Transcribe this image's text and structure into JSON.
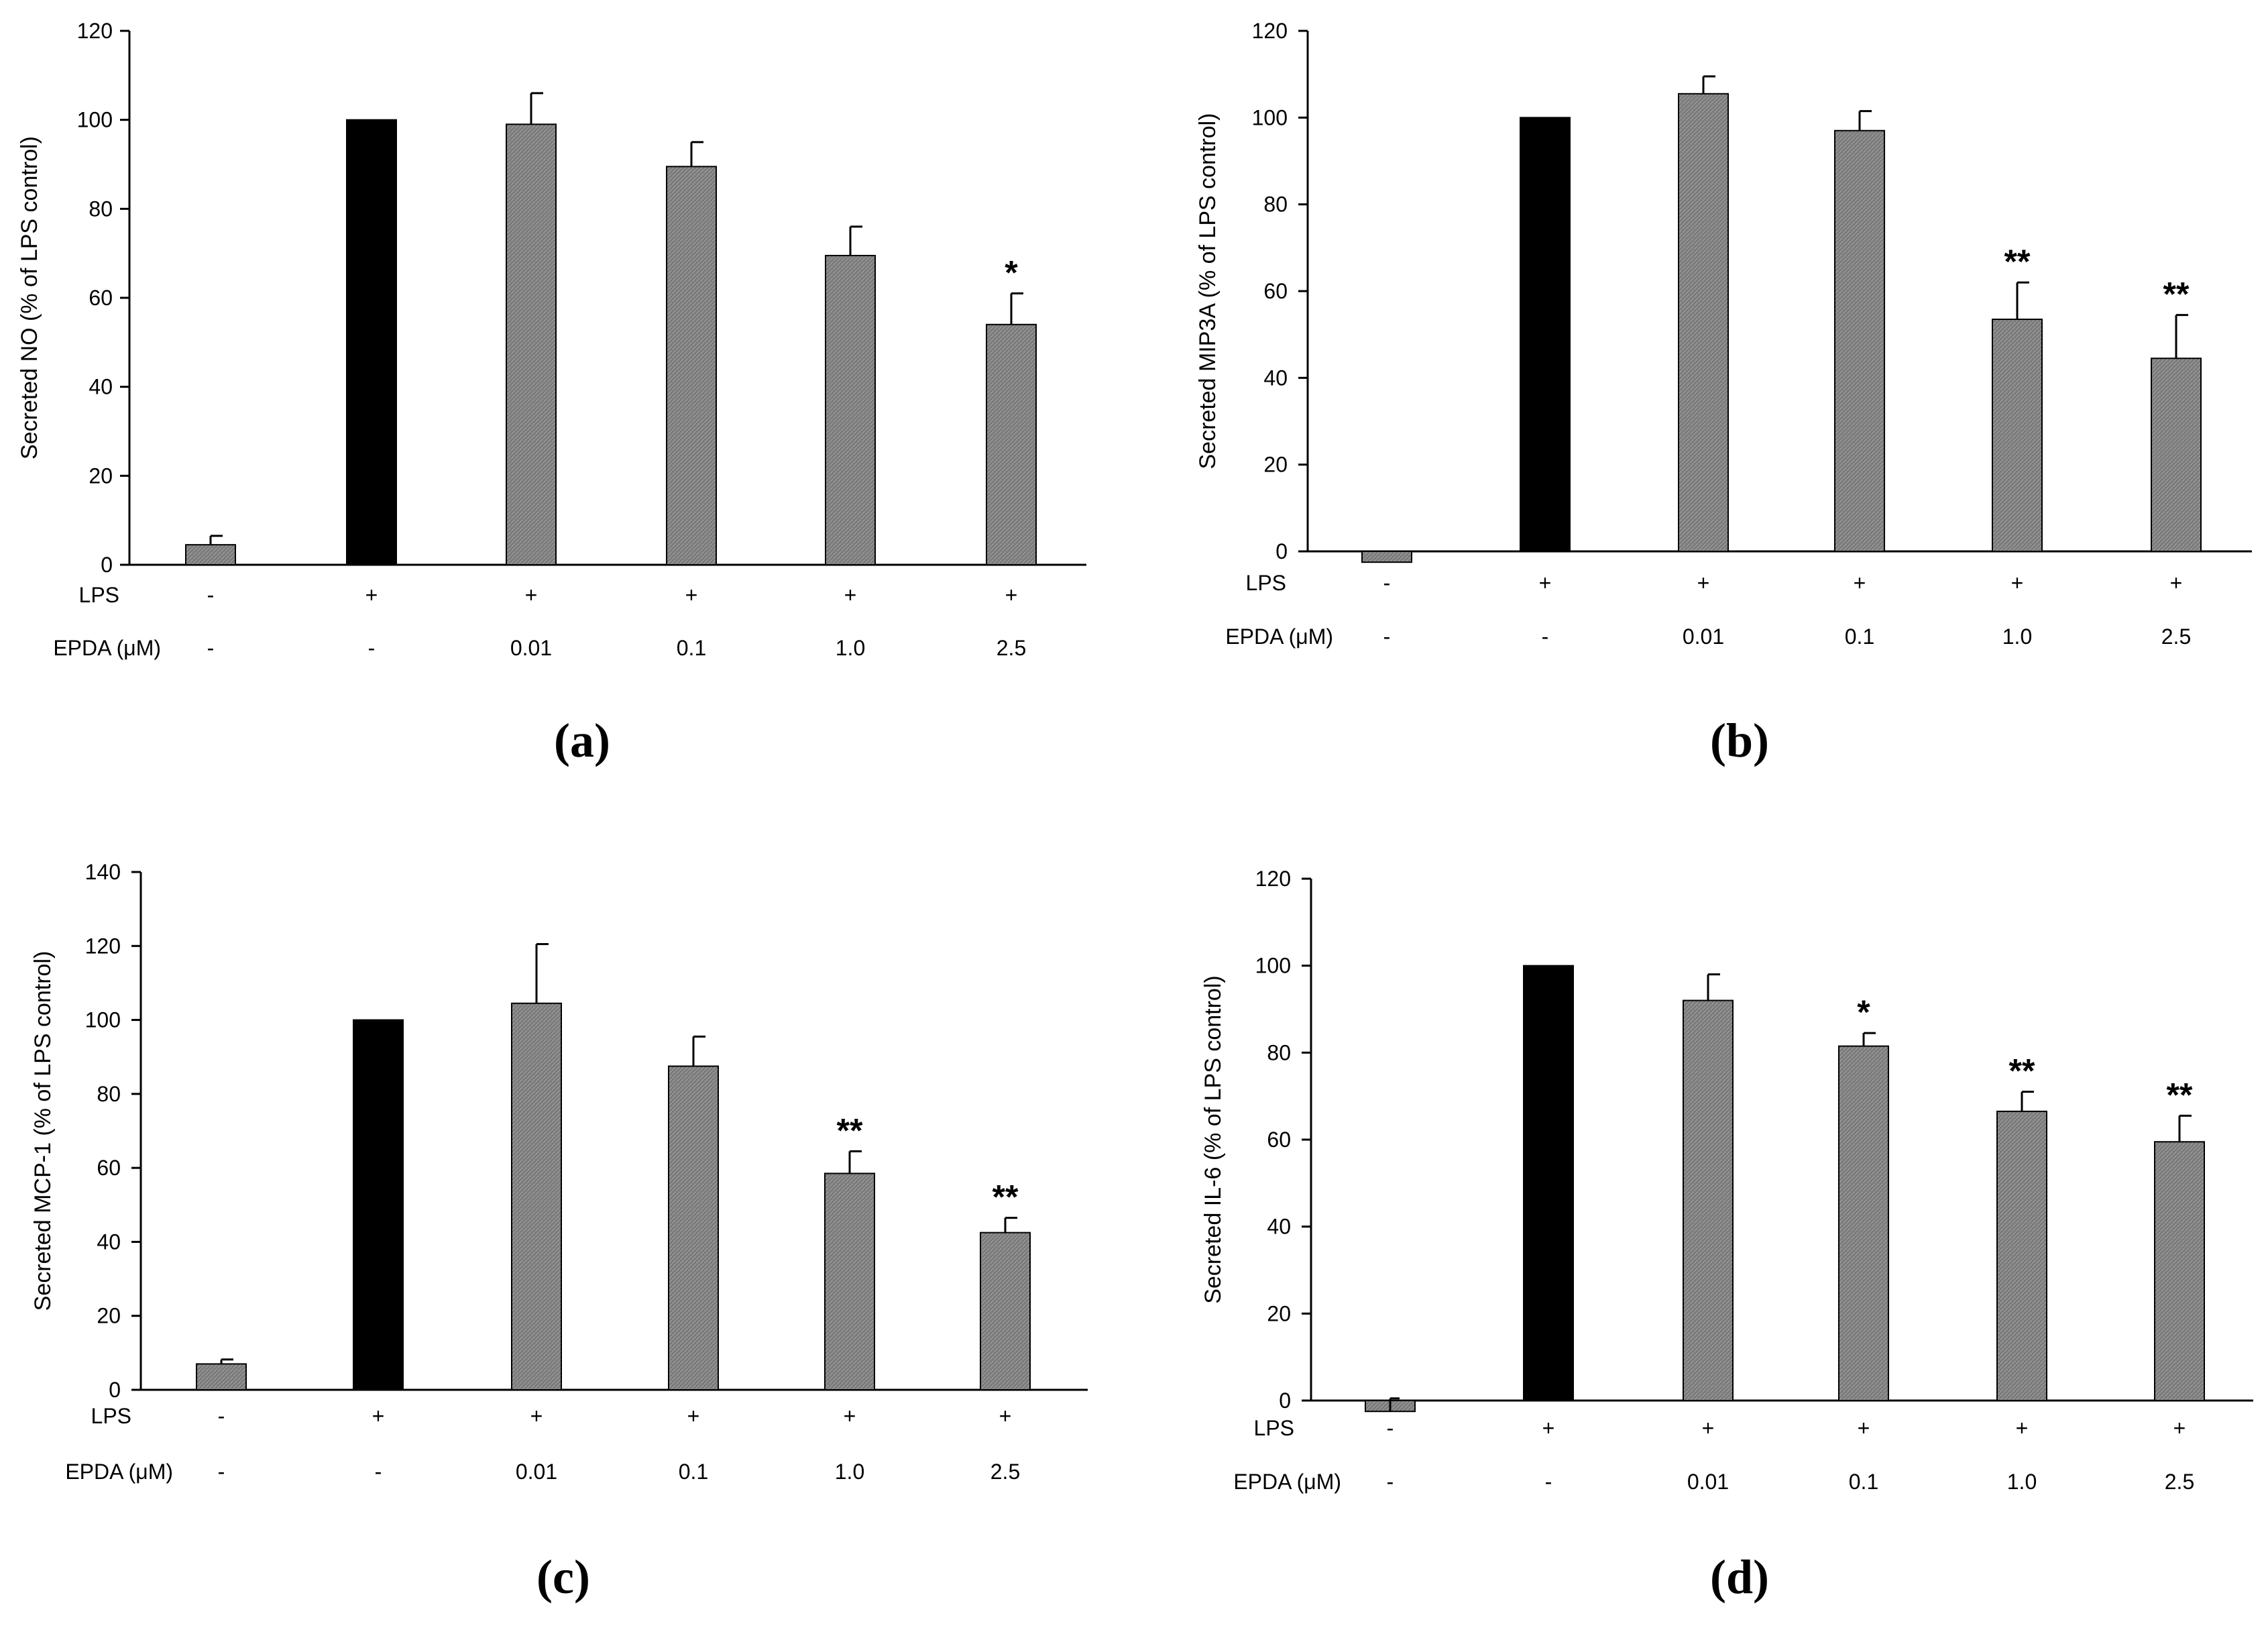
{
  "colors": {
    "lps_control_bar": "#000000",
    "treatment_bar": "#7a7a7a",
    "bar_stroke": "#000000",
    "axis": "#000000",
    "background": "#ffffff"
  },
  "chart_data": [
    {
      "type": "bar",
      "panel_label": "(a)",
      "ylabel": "Secreted NO (% of LPS control)",
      "ylim": [
        0,
        120
      ],
      "yticks": [
        0,
        20,
        40,
        60,
        80,
        100,
        120
      ],
      "row_labels": [
        "LPS",
        "EPDA (μM)"
      ],
      "lps": [
        "-",
        "+",
        "+",
        "+",
        "+",
        "+"
      ],
      "epda": [
        "-",
        "-",
        "0.01",
        "0.1",
        "1.0",
        "2.5"
      ],
      "values": [
        4.5,
        100,
        99,
        89.5,
        69.5,
        54
      ],
      "errors": [
        2,
        0,
        7,
        5.5,
        6.5,
        7
      ],
      "significance": [
        "",
        "",
        "",
        "",
        "",
        "*"
      ]
    },
    {
      "type": "bar",
      "panel_label": "(b)",
      "ylabel": "Secreted MIP3A (% of LPS control)",
      "ylim": [
        0,
        120
      ],
      "yticks": [
        0,
        20,
        40,
        60,
        80,
        100,
        120
      ],
      "row_labels": [
        "LPS",
        "EPDA (μM)"
      ],
      "lps": [
        "-",
        "+",
        "+",
        "+",
        "+",
        "+"
      ],
      "epda": [
        "-",
        "-",
        "0.01",
        "0.1",
        "1.0",
        "2.5"
      ],
      "values": [
        -2.5,
        100,
        105.5,
        97,
        53.5,
        44.5
      ],
      "errors": [
        0,
        0,
        4,
        4.5,
        8.5,
        10
      ],
      "significance": [
        "",
        "",
        "",
        "",
        "**",
        "**"
      ]
    },
    {
      "type": "bar",
      "panel_label": "(c)",
      "ylabel": "Secreted MCP-1 (% of LPS control)",
      "ylim": [
        0,
        140
      ],
      "yticks": [
        0,
        20,
        40,
        60,
        80,
        100,
        120,
        140
      ],
      "row_labels": [
        "LPS",
        "EPDA (μM)"
      ],
      "lps": [
        "-",
        "+",
        "+",
        "+",
        "+",
        "+"
      ],
      "epda": [
        "-",
        "-",
        "0.01",
        "0.1",
        "1.0",
        "2.5"
      ],
      "values": [
        7,
        100,
        104.5,
        87.5,
        58.5,
        42.5
      ],
      "errors": [
        1.2,
        0,
        16,
        8,
        6,
        4
      ],
      "significance": [
        "",
        "",
        "",
        "",
        "**",
        "**"
      ]
    },
    {
      "type": "bar",
      "panel_label": "(d)",
      "ylabel": "Secreted IL-6 (% of LPS control)",
      "ylim": [
        0,
        120
      ],
      "yticks": [
        0,
        20,
        40,
        60,
        80,
        100,
        120
      ],
      "row_labels": [
        "LPS",
        "EPDA (μM)"
      ],
      "lps": [
        "-",
        "+",
        "+",
        "+",
        "+",
        "+"
      ],
      "epda": [
        "-",
        "-",
        "0.01",
        "0.1",
        "1.0",
        "2.5"
      ],
      "values": [
        -2.5,
        100,
        92,
        81.5,
        66.5,
        59.5
      ],
      "errors": [
        3,
        0,
        6,
        3,
        4.5,
        6
      ],
      "significance": [
        "",
        "",
        "",
        "*",
        "**",
        "**"
      ]
    }
  ]
}
